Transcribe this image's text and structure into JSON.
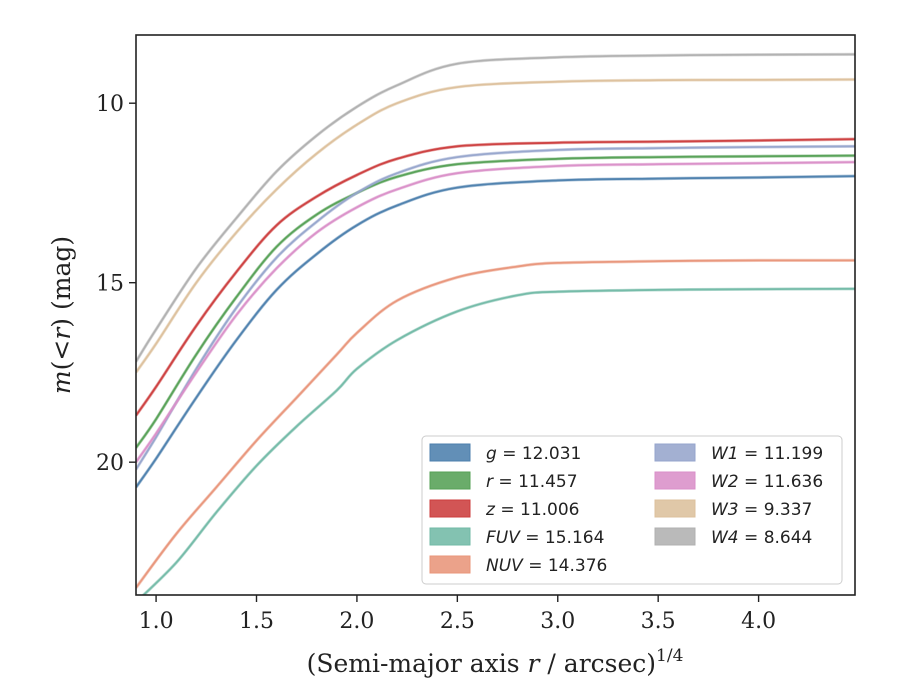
{
  "chart_data": {
    "type": "line",
    "title": "",
    "xlabel": "(Semi-major axis r / arcsec)^1/4",
    "xlabel_parts": {
      "lead": "(Semi-major axis ",
      "var": "r",
      "trail": " / arcsec)",
      "sup": "1/4"
    },
    "ylabel": "m(<r) (mag)",
    "ylabel_parts": {
      "m": "m",
      "open": "(",
      "lt": "<",
      "r": "r",
      "close": ")",
      "unit": " (mag)"
    },
    "xlim": [
      0.9,
      4.48
    ],
    "ylim": [
      23.7,
      8.1
    ],
    "y_inverted": true,
    "xticks": [
      1.0,
      1.5,
      2.0,
      2.5,
      3.0,
      3.5,
      4.0
    ],
    "xtick_labels": [
      "1.0",
      "1.5",
      "2.0",
      "2.5",
      "3.0",
      "3.5",
      "4.0"
    ],
    "yticks": [
      10,
      15,
      20
    ],
    "ytick_labels": [
      "10",
      "15",
      "20"
    ],
    "grid": false,
    "legend_position": "lower-right",
    "series": [
      {
        "name": "g",
        "total": "12.031",
        "color": "#4c7fad",
        "x": [
          0.9,
          1.0,
          1.2,
          1.4,
          1.6,
          1.8,
          2.0,
          2.2,
          2.5,
          3.0,
          3.5,
          4.0,
          4.48
        ],
        "y": [
          20.7,
          19.9,
          18.2,
          16.6,
          15.2,
          14.2,
          13.4,
          12.85,
          12.35,
          12.15,
          12.1,
          12.07,
          12.03
        ]
      },
      {
        "name": "r",
        "total": "11.457",
        "color": "#55a055",
        "x": [
          0.9,
          1.0,
          1.2,
          1.4,
          1.6,
          1.8,
          2.0,
          2.2,
          2.5,
          3.0,
          3.5,
          4.0,
          4.48
        ],
        "y": [
          19.6,
          18.8,
          17.0,
          15.4,
          14.0,
          13.1,
          12.5,
          12.05,
          11.7,
          11.55,
          11.5,
          11.48,
          11.46
        ]
      },
      {
        "name": "z",
        "total": "11.006",
        "color": "#cc3d3d",
        "x": [
          0.9,
          1.0,
          1.2,
          1.4,
          1.6,
          1.8,
          2.0,
          2.2,
          2.5,
          3.0,
          3.5,
          4.0,
          4.48
        ],
        "y": [
          18.7,
          17.9,
          16.2,
          14.7,
          13.4,
          12.6,
          12.0,
          11.55,
          11.2,
          11.1,
          11.07,
          11.04,
          11.0
        ]
      },
      {
        "name": "FUV",
        "total": "15.164",
        "color": "#72b9a6",
        "x": [
          0.9,
          1.1,
          1.3,
          1.5,
          1.7,
          1.9,
          2.0,
          2.2,
          2.5,
          2.8,
          3.0,
          3.5,
          4.0,
          4.48
        ],
        "y": [
          23.9,
          22.8,
          21.4,
          20.1,
          19.0,
          18.0,
          17.4,
          16.6,
          15.8,
          15.35,
          15.25,
          15.2,
          15.18,
          15.17
        ]
      },
      {
        "name": "NUV",
        "total": "14.376",
        "color": "#e8957a",
        "x": [
          0.9,
          1.1,
          1.3,
          1.5,
          1.7,
          1.9,
          2.0,
          2.2,
          2.5,
          2.8,
          3.0,
          3.5,
          4.0,
          4.48
        ],
        "y": [
          23.5,
          22.0,
          20.7,
          19.4,
          18.2,
          17.0,
          16.4,
          15.5,
          14.85,
          14.55,
          14.45,
          14.4,
          14.38,
          14.38
        ]
      },
      {
        "name": "W1",
        "total": "11.199",
        "color": "#96a5cc",
        "x": [
          0.9,
          1.0,
          1.2,
          1.4,
          1.6,
          1.8,
          2.0,
          2.2,
          2.5,
          3.0,
          3.5,
          4.0,
          4.48
        ],
        "y": [
          20.2,
          19.3,
          17.4,
          15.7,
          14.3,
          13.3,
          12.5,
          11.95,
          11.5,
          11.3,
          11.25,
          11.22,
          11.2
        ]
      },
      {
        "name": "W2",
        "total": "11.636",
        "color": "#d98fc8",
        "x": [
          0.9,
          1.0,
          1.2,
          1.4,
          1.6,
          1.8,
          2.0,
          2.2,
          2.5,
          3.0,
          3.5,
          4.0,
          4.48
        ],
        "y": [
          20.0,
          19.2,
          17.5,
          15.9,
          14.6,
          13.6,
          12.9,
          12.4,
          11.95,
          11.75,
          11.7,
          11.67,
          11.64
        ]
      },
      {
        "name": "W3",
        "total": "9.337",
        "color": "#dcc09c",
        "x": [
          0.9,
          1.0,
          1.2,
          1.4,
          1.6,
          1.8,
          2.0,
          2.2,
          2.5,
          3.0,
          3.5,
          4.0,
          4.48
        ],
        "y": [
          17.5,
          16.7,
          15.0,
          13.6,
          12.4,
          11.4,
          10.6,
          10.0,
          9.55,
          9.4,
          9.36,
          9.35,
          9.34
        ]
      },
      {
        "name": "W4",
        "total": "8.644",
        "color": "#b0b0b0",
        "x": [
          0.9,
          1.0,
          1.2,
          1.4,
          1.6,
          1.8,
          2.0,
          2.2,
          2.5,
          3.0,
          3.5,
          4.0,
          4.48
        ],
        "y": [
          17.2,
          16.3,
          14.6,
          13.2,
          11.9,
          10.9,
          10.1,
          9.5,
          8.9,
          8.72,
          8.67,
          8.65,
          8.64
        ]
      }
    ]
  }
}
